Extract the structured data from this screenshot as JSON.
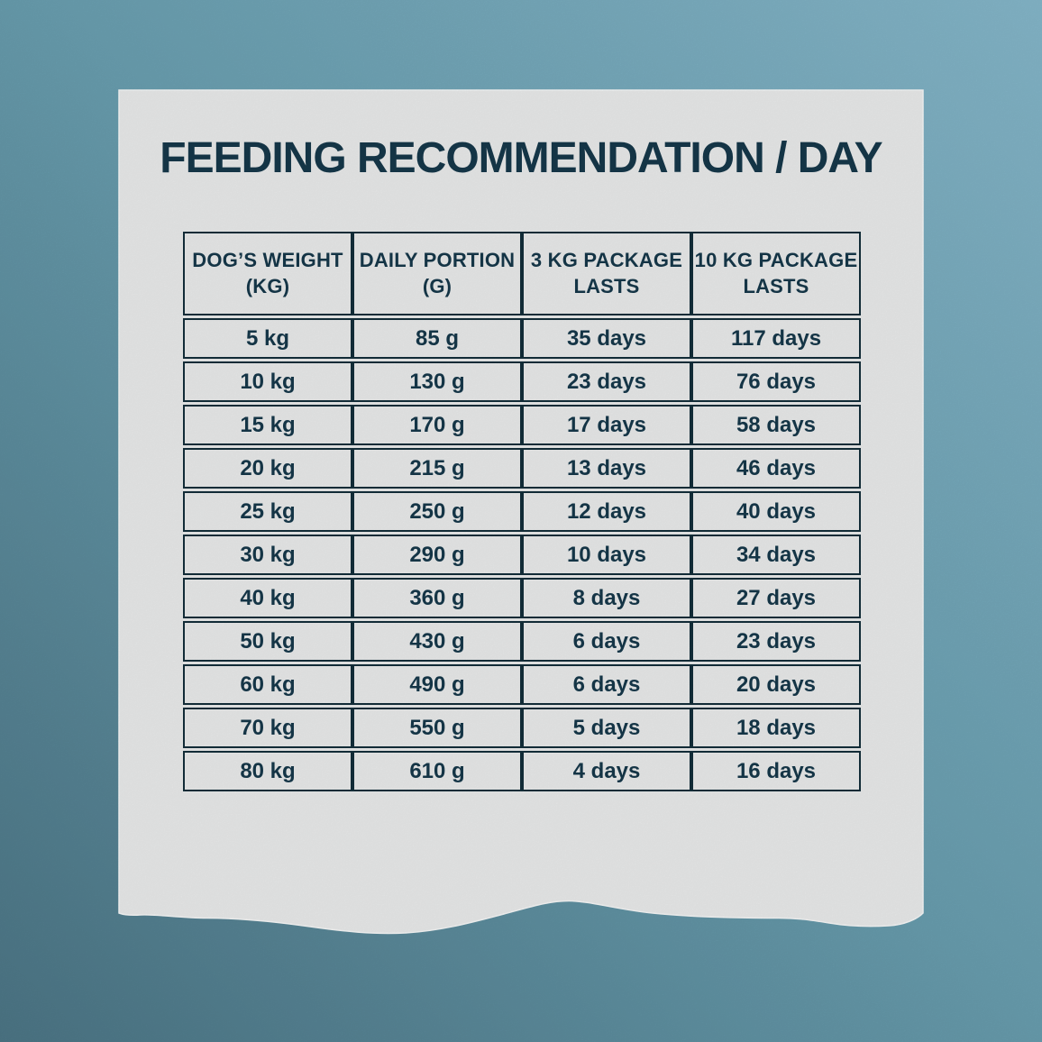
{
  "title": "FEEDING RECOMMENDATION / DAY",
  "colors": {
    "ink": "#16384a",
    "border": "#132e3a",
    "paper": "#e9eaea",
    "bg_top_right": "#85b6c9",
    "bg_mid": "#699eaf",
    "bg_bottom_left": "#4c7585"
  },
  "table": {
    "headers": [
      "DOG’S WEIGHT\n(KG)",
      "DAILY PORTION\n(G)",
      "3 KG PACKAGE\nLASTS",
      "10 KG PACKAGE\nLASTS"
    ],
    "rows": [
      [
        "5 kg",
        "85 g",
        "35 days",
        "117 days"
      ],
      [
        "10 kg",
        "130 g",
        "23 days",
        "76 days"
      ],
      [
        "15 kg",
        "170 g",
        "17 days",
        "58 days"
      ],
      [
        "20 kg",
        "215 g",
        "13 days",
        "46 days"
      ],
      [
        "25 kg",
        "250 g",
        "12 days",
        "40 days"
      ],
      [
        "30 kg",
        "290 g",
        "10 days",
        "34 days"
      ],
      [
        "40 kg",
        "360 g",
        "8 days",
        "27 days"
      ],
      [
        "50 kg",
        "430 g",
        "6 days",
        "23 days"
      ],
      [
        "60 kg",
        "490 g",
        "6 days",
        "20 days"
      ],
      [
        "70 kg",
        "550 g",
        "5 days",
        "18 days"
      ],
      [
        "80 kg",
        "610 g",
        "4 days",
        "16 days"
      ]
    ]
  },
  "chart_data": {
    "type": "table",
    "title": "FEEDING RECOMMENDATION / DAY",
    "columns": [
      "DOG’S WEIGHT (KG)",
      "DAILY PORTION (G)",
      "3 KG PACKAGE LASTS",
      "10 KG PACKAGE LASTS"
    ],
    "rows": [
      [
        "5 kg",
        "85 g",
        "35 days",
        "117 days"
      ],
      [
        "10 kg",
        "130 g",
        "23 days",
        "76 days"
      ],
      [
        "15 kg",
        "170 g",
        "17 days",
        "58 days"
      ],
      [
        "20 kg",
        "215 g",
        "13 days",
        "46 days"
      ],
      [
        "25 kg",
        "250 g",
        "12 days",
        "40 days"
      ],
      [
        "30 kg",
        "290 g",
        "10 days",
        "34 days"
      ],
      [
        "40 kg",
        "360 g",
        "8 days",
        "27 days"
      ],
      [
        "50 kg",
        "430 g",
        "6 days",
        "23 days"
      ],
      [
        "60 kg",
        "490 g",
        "6 days",
        "20 days"
      ],
      [
        "70 kg",
        "550 g",
        "5 days",
        "18 days"
      ],
      [
        "80 kg",
        "610 g",
        "4 days",
        "16 days"
      ]
    ]
  }
}
